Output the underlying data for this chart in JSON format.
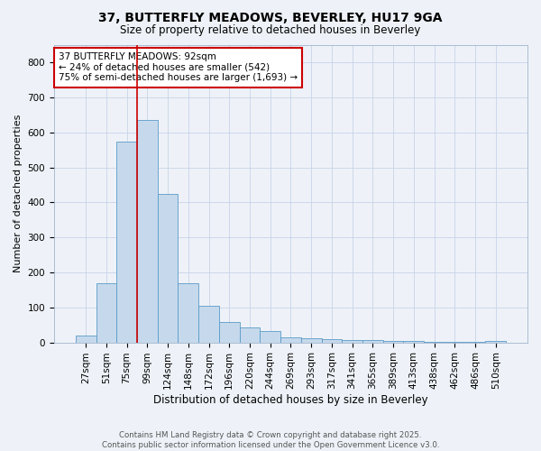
{
  "title_line1": "37, BUTTERFLY MEADOWS, BEVERLEY, HU17 9GA",
  "title_line2": "Size of property relative to detached houses in Beverley",
  "xlabel": "Distribution of detached houses by size in Beverley",
  "ylabel": "Number of detached properties",
  "categories": [
    "27sqm",
    "51sqm",
    "75sqm",
    "99sqm",
    "124sqm",
    "148sqm",
    "172sqm",
    "196sqm",
    "220sqm",
    "244sqm",
    "269sqm",
    "293sqm",
    "317sqm",
    "341sqm",
    "365sqm",
    "389sqm",
    "413sqm",
    "438sqm",
    "462sqm",
    "486sqm",
    "510sqm"
  ],
  "values": [
    20,
    170,
    575,
    635,
    425,
    170,
    105,
    57,
    42,
    33,
    15,
    12,
    10,
    7,
    6,
    5,
    3,
    2,
    1,
    1,
    5
  ],
  "bar_color": "#c6d9ec",
  "bar_edge_color": "#5a9ac8",
  "ylim": [
    0,
    850
  ],
  "yticks": [
    0,
    100,
    200,
    300,
    400,
    500,
    600,
    700,
    800
  ],
  "annotation_text": "37 BUTTERFLY MEADOWS: 92sqm\n← 24% of detached houses are smaller (542)\n75% of semi-detached houses are larger (1,693) →",
  "annotation_box_color": "#ffffff",
  "annotation_box_edge_color": "#cc0000",
  "footer_line1": "Contains HM Land Registry data © Crown copyright and database right 2025.",
  "footer_line2": "Contains public sector information licensed under the Open Government Licence v3.0.",
  "background_color": "#eef2f8",
  "plot_bg_color": "#eef2f8",
  "grid_color": "#c8d4e8",
  "red_line_x": 2.5
}
